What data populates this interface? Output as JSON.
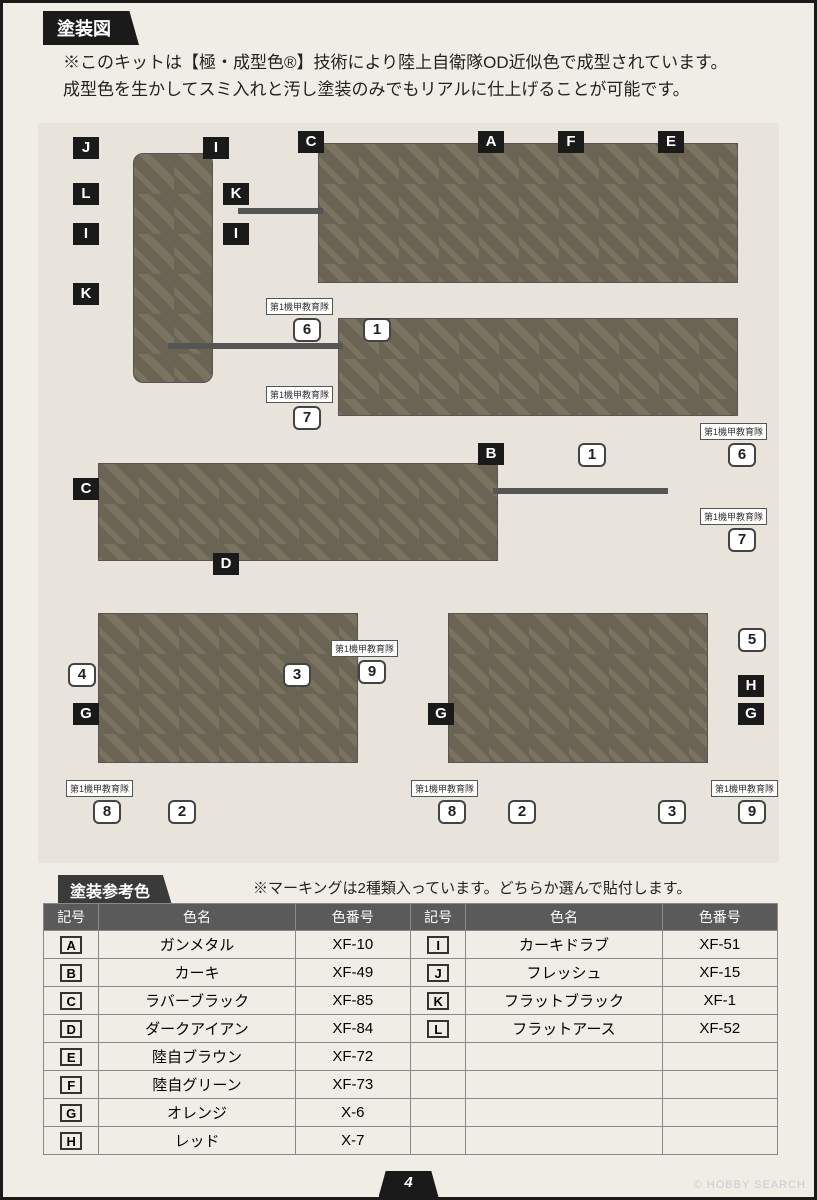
{
  "header": {
    "tab": "塗装図"
  },
  "notice": {
    "line1": "※このキットは【極・成型色®】技術により陸上自衛隊OD近似色で成型されています。",
    "line2": "成型色を生かしてスミ入れと汚し塗装のみでもリアルに仕上げることが可能です。"
  },
  "callouts_letter": [
    "A",
    "B",
    "C",
    "D",
    "E",
    "F",
    "G",
    "H",
    "I",
    "J",
    "K",
    "L"
  ],
  "callouts_num": [
    "1",
    "2",
    "3",
    "4",
    "5",
    "6",
    "7",
    "8",
    "9"
  ],
  "small_label_text": "第1機甲教育隊",
  "ref_section": {
    "title": "塗装参考色",
    "marking_note": "※マーキングは2種類入っています。どちらか選んで貼付します。"
  },
  "table": {
    "headers": [
      "記号",
      "色名",
      "色番号",
      "記号",
      "色名",
      "色番号"
    ],
    "rows": [
      [
        "A",
        "ガンメタル",
        "XF-10",
        "I",
        "カーキドラブ",
        "XF-51"
      ],
      [
        "B",
        "カーキ",
        "XF-49",
        "J",
        "フレッシュ",
        "XF-15"
      ],
      [
        "C",
        "ラバーブラック",
        "XF-85",
        "K",
        "フラットブラック",
        "XF-1"
      ],
      [
        "D",
        "ダークアイアン",
        "XF-84",
        "L",
        "フラットアース",
        "XF-52"
      ],
      [
        "E",
        "陸自ブラウン",
        "XF-72",
        "",
        "",
        ""
      ],
      [
        "F",
        "陸自グリーン",
        "XF-73",
        "",
        "",
        ""
      ],
      [
        "G",
        "オレンジ",
        "X-6",
        "",
        "",
        ""
      ],
      [
        "H",
        "レッド",
        "X-7",
        "",
        "",
        ""
      ]
    ]
  },
  "page_number": "4",
  "watermark": "© HOBBY SEARCH",
  "colors": {
    "frame": "#1a1a1a",
    "bg": "#f0ede6",
    "table_header_bg": "#5a5a5a",
    "camo_dark": "#6b6455",
    "camo_light": "#7a735f"
  }
}
